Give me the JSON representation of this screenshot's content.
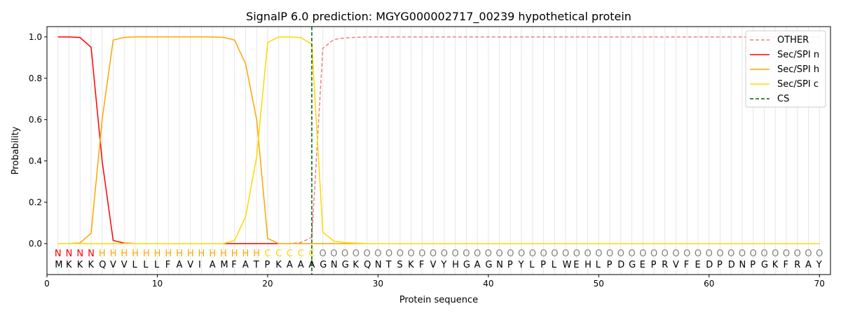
{
  "chart_data": {
    "type": "line",
    "title": "SignalP 6.0 prediction: MGYG000002717_00239 hypothetical protein",
    "xlabel": "Protein sequence",
    "ylabel": "Probability",
    "xlim": [
      0,
      71
    ],
    "ylim": [
      -0.15,
      1.05
    ],
    "xticks": [
      0,
      10,
      20,
      30,
      40,
      50,
      60,
      70
    ],
    "yticks": [
      "0.0",
      "0.2",
      "0.4",
      "0.6",
      "0.8",
      "1.0"
    ],
    "legend_position": "top-right",
    "sequence": "MKKKQVVLLLFAVIAMFATPKAAAGNGKQNTSKFVYHGAGNPYLPLWEHLPDGEPRVFEDPDNPGKFRAY",
    "labels": "NNNNHHHHHHHHHHHHHHHCCCCCOOOOOOOOOOOOOOOOOOOOOOOOOOOOOOOOOOOOOOOOOOOOOO",
    "label_colors": {
      "N": "#ff0000",
      "H": "#ffa500",
      "C": "#ffd700",
      "O": "#808080"
    },
    "cs_position": 24,
    "series": [
      {
        "name": "OTHER",
        "color": "#f08080",
        "dash": true,
        "values": [
          0,
          0,
          0,
          0,
          0,
          0,
          0,
          0,
          0,
          0,
          0,
          0,
          0,
          0,
          0,
          0,
          0,
          0,
          0,
          0,
          0,
          0,
          0.005,
          0.03,
          0.945,
          0.988,
          0.995,
          0.998,
          1,
          1,
          1,
          1,
          1,
          1,
          1,
          1,
          1,
          1,
          1,
          1,
          1,
          1,
          1,
          1,
          1,
          1,
          1,
          1,
          1,
          1,
          1,
          1,
          1,
          1,
          1,
          1,
          1,
          1,
          1,
          1,
          1,
          1,
          1,
          1,
          1,
          1,
          1,
          1,
          1,
          1
        ]
      },
      {
        "name": "Sec/SPI n",
        "color": "#ff0000",
        "values": [
          1.0,
          1.0,
          0.997,
          0.95,
          0.4,
          0.015,
          0.002,
          0,
          0,
          0,
          0,
          0,
          0,
          0,
          0,
          0,
          0,
          0,
          0,
          0,
          0,
          0,
          0,
          0,
          0,
          0,
          0,
          0,
          0,
          0,
          0,
          0,
          0,
          0,
          0,
          0,
          0,
          0,
          0,
          0,
          0,
          0,
          0,
          0,
          0,
          0,
          0,
          0,
          0,
          0,
          0,
          0,
          0,
          0,
          0,
          0,
          0,
          0,
          0,
          0,
          0,
          0,
          0,
          0,
          0,
          0,
          0,
          0,
          0,
          0
        ]
      },
      {
        "name": "Sec/SPI h",
        "color": "#ffa500",
        "values": [
          0,
          0,
          0.003,
          0.05,
          0.6,
          0.985,
          0.998,
          1,
          1,
          1,
          1,
          1,
          1,
          1,
          1,
          0.998,
          0.985,
          0.87,
          0.6,
          0.025,
          0,
          0,
          0,
          0,
          0,
          0,
          0,
          0,
          0,
          0,
          0,
          0,
          0,
          0,
          0,
          0,
          0,
          0,
          0,
          0,
          0,
          0,
          0,
          0,
          0,
          0,
          0,
          0,
          0,
          0,
          0,
          0,
          0,
          0,
          0,
          0,
          0,
          0,
          0,
          0,
          0,
          0,
          0,
          0,
          0,
          0,
          0,
          0,
          0,
          0
        ]
      },
      {
        "name": "Sec/SPI c",
        "color": "#ffd700",
        "values": [
          0,
          0,
          0,
          0,
          0,
          0,
          0,
          0,
          0,
          0,
          0,
          0,
          0,
          0,
          0,
          0,
          0.015,
          0.13,
          0.42,
          0.973,
          1.0,
          1.0,
          0.997,
          0.965,
          0.055,
          0.012,
          0.005,
          0.002,
          0,
          0,
          0,
          0,
          0,
          0,
          0,
          0,
          0,
          0,
          0,
          0,
          0,
          0,
          0,
          0,
          0,
          0,
          0,
          0,
          0,
          0,
          0,
          0,
          0,
          0,
          0,
          0,
          0,
          0,
          0,
          0,
          0,
          0,
          0,
          0,
          0,
          0,
          0,
          0,
          0,
          0
        ]
      },
      {
        "name": "CS",
        "color": "#006400",
        "dash": true,
        "vertical": true
      }
    ]
  }
}
